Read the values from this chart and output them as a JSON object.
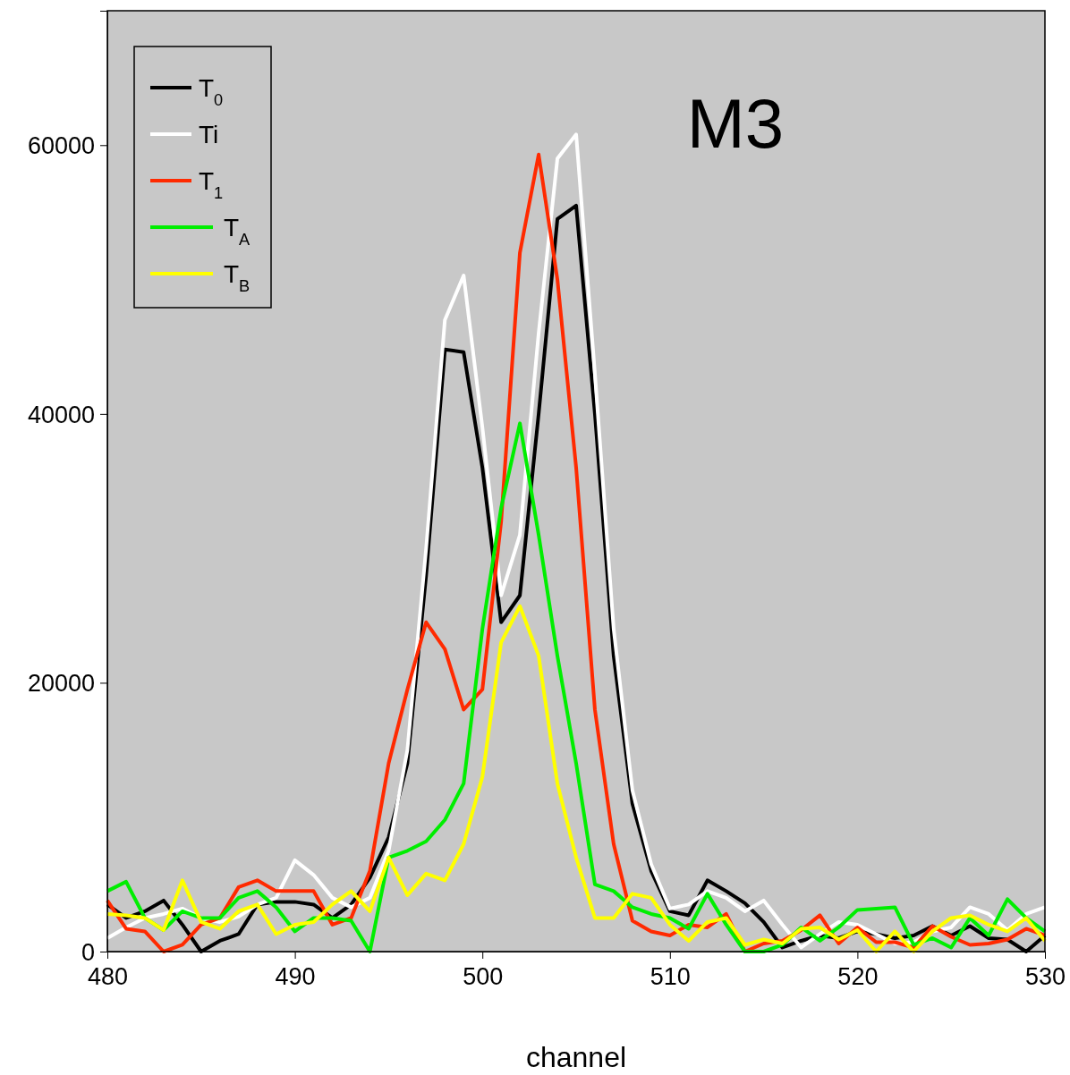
{
  "chart_data": {
    "type": "line",
    "xlabel": "channel",
    "annotations": [
      "M3"
    ],
    "x": [
      480,
      481,
      482,
      483,
      484,
      485,
      486,
      487,
      488,
      489,
      490,
      491,
      492,
      493,
      494,
      495,
      496,
      497,
      498,
      499,
      500,
      501,
      502,
      503,
      504,
      505,
      506,
      507,
      508,
      509,
      510,
      511,
      512,
      513,
      514,
      515,
      516,
      517,
      518,
      519,
      520,
      521,
      522,
      523,
      524,
      525,
      526,
      527,
      528,
      529,
      530
    ],
    "xlim": [
      480,
      530
    ],
    "xticks": [
      480,
      490,
      500,
      510,
      520,
      530
    ],
    "ylim": [
      0,
      70000
    ],
    "yticks": [
      0,
      20000,
      40000,
      60000
    ],
    "grid": false,
    "legend": "top left",
    "marker": "none",
    "line_style": "solid",
    "series": [
      {
        "name": "T$_{0}$",
        "color": "#000000",
        "values": [
          3500,
          2500,
          3000,
          3800,
          2000,
          0,
          800,
          1300,
          3500,
          3700,
          3700,
          3500,
          2500,
          3500,
          5500,
          8500,
          14000,
          28000,
          44800,
          44600,
          36000,
          24500,
          26500,
          40000,
          54500,
          55500,
          40000,
          22000,
          11000,
          6000,
          3000,
          2700,
          5300,
          4500,
          3600,
          2200,
          300,
          800,
          1200,
          1000,
          1500,
          1300,
          1000,
          1200,
          1900,
          1200,
          1900,
          1000,
          900,
          0,
          1200
        ]
      },
      {
        "name": "Ti",
        "color": "#ffffff",
        "values": [
          1000,
          1800,
          2500,
          2800,
          3200,
          2500,
          2200,
          2600,
          3500,
          4000,
          6800,
          5700,
          4000,
          3300,
          4000,
          7500,
          15000,
          30000,
          47000,
          50300,
          39000,
          26500,
          31000,
          46000,
          59000,
          60800,
          43000,
          24000,
          12000,
          6500,
          3200,
          3500,
          4500,
          4000,
          3000,
          3800,
          2000,
          300,
          1300,
          2200,
          2000,
          1300,
          600,
          700,
          1500,
          1800,
          3300,
          2800,
          1600,
          2800,
          3300
        ]
      },
      {
        "name": "T$_{1}$",
        "color": "#ff2a00",
        "values": [
          3800,
          1700,
          1500,
          0,
          500,
          2000,
          2500,
          4800,
          5300,
          4500,
          4500,
          4500,
          2000,
          2500,
          6000,
          14000,
          19500,
          24500,
          22500,
          18000,
          19500,
          32000,
          52000,
          59300,
          50000,
          36000,
          18000,
          8000,
          2300,
          1500,
          1200,
          2000,
          1800,
          2800,
          0,
          600,
          800,
          1600,
          2700,
          600,
          1800,
          700,
          700,
          300,
          1900,
          1100,
          500,
          600,
          900,
          1700,
          1200
        ]
      },
      {
        "name": "T$_{A}$",
        "color": "#00ee00",
        "values": [
          4500,
          5200,
          2500,
          1600,
          3000,
          2500,
          2500,
          4000,
          4500,
          3300,
          1500,
          2500,
          2500,
          2300,
          0,
          7000,
          7500,
          8200,
          9800,
          12500,
          24000,
          33000,
          39300,
          31000,
          22000,
          14000,
          5000,
          4500,
          3300,
          2800,
          2500,
          1700,
          4300,
          2000,
          0,
          0,
          500,
          1800,
          800,
          1800,
          3100,
          3200,
          3300,
          500,
          1000,
          300,
          2500,
          1200,
          3900,
          2500,
          1500
        ]
      },
      {
        "name": "T$_{B}$",
        "color": "#ffff00",
        "values": [
          2800,
          2700,
          2500,
          1600,
          5300,
          2200,
          1700,
          3000,
          3500,
          1300,
          2000,
          2200,
          3500,
          4500,
          3000,
          7000,
          4200,
          5800,
          5300,
          8000,
          13000,
          23000,
          25700,
          22000,
          12500,
          7000,
          2500,
          2500,
          4300,
          4000,
          2000,
          800,
          2200,
          2500,
          500,
          900,
          600,
          1700,
          1800,
          900,
          1600,
          0,
          1500,
          0,
          1500,
          2500,
          2700,
          2000,
          1500,
          2500,
          800
        ]
      }
    ]
  }
}
